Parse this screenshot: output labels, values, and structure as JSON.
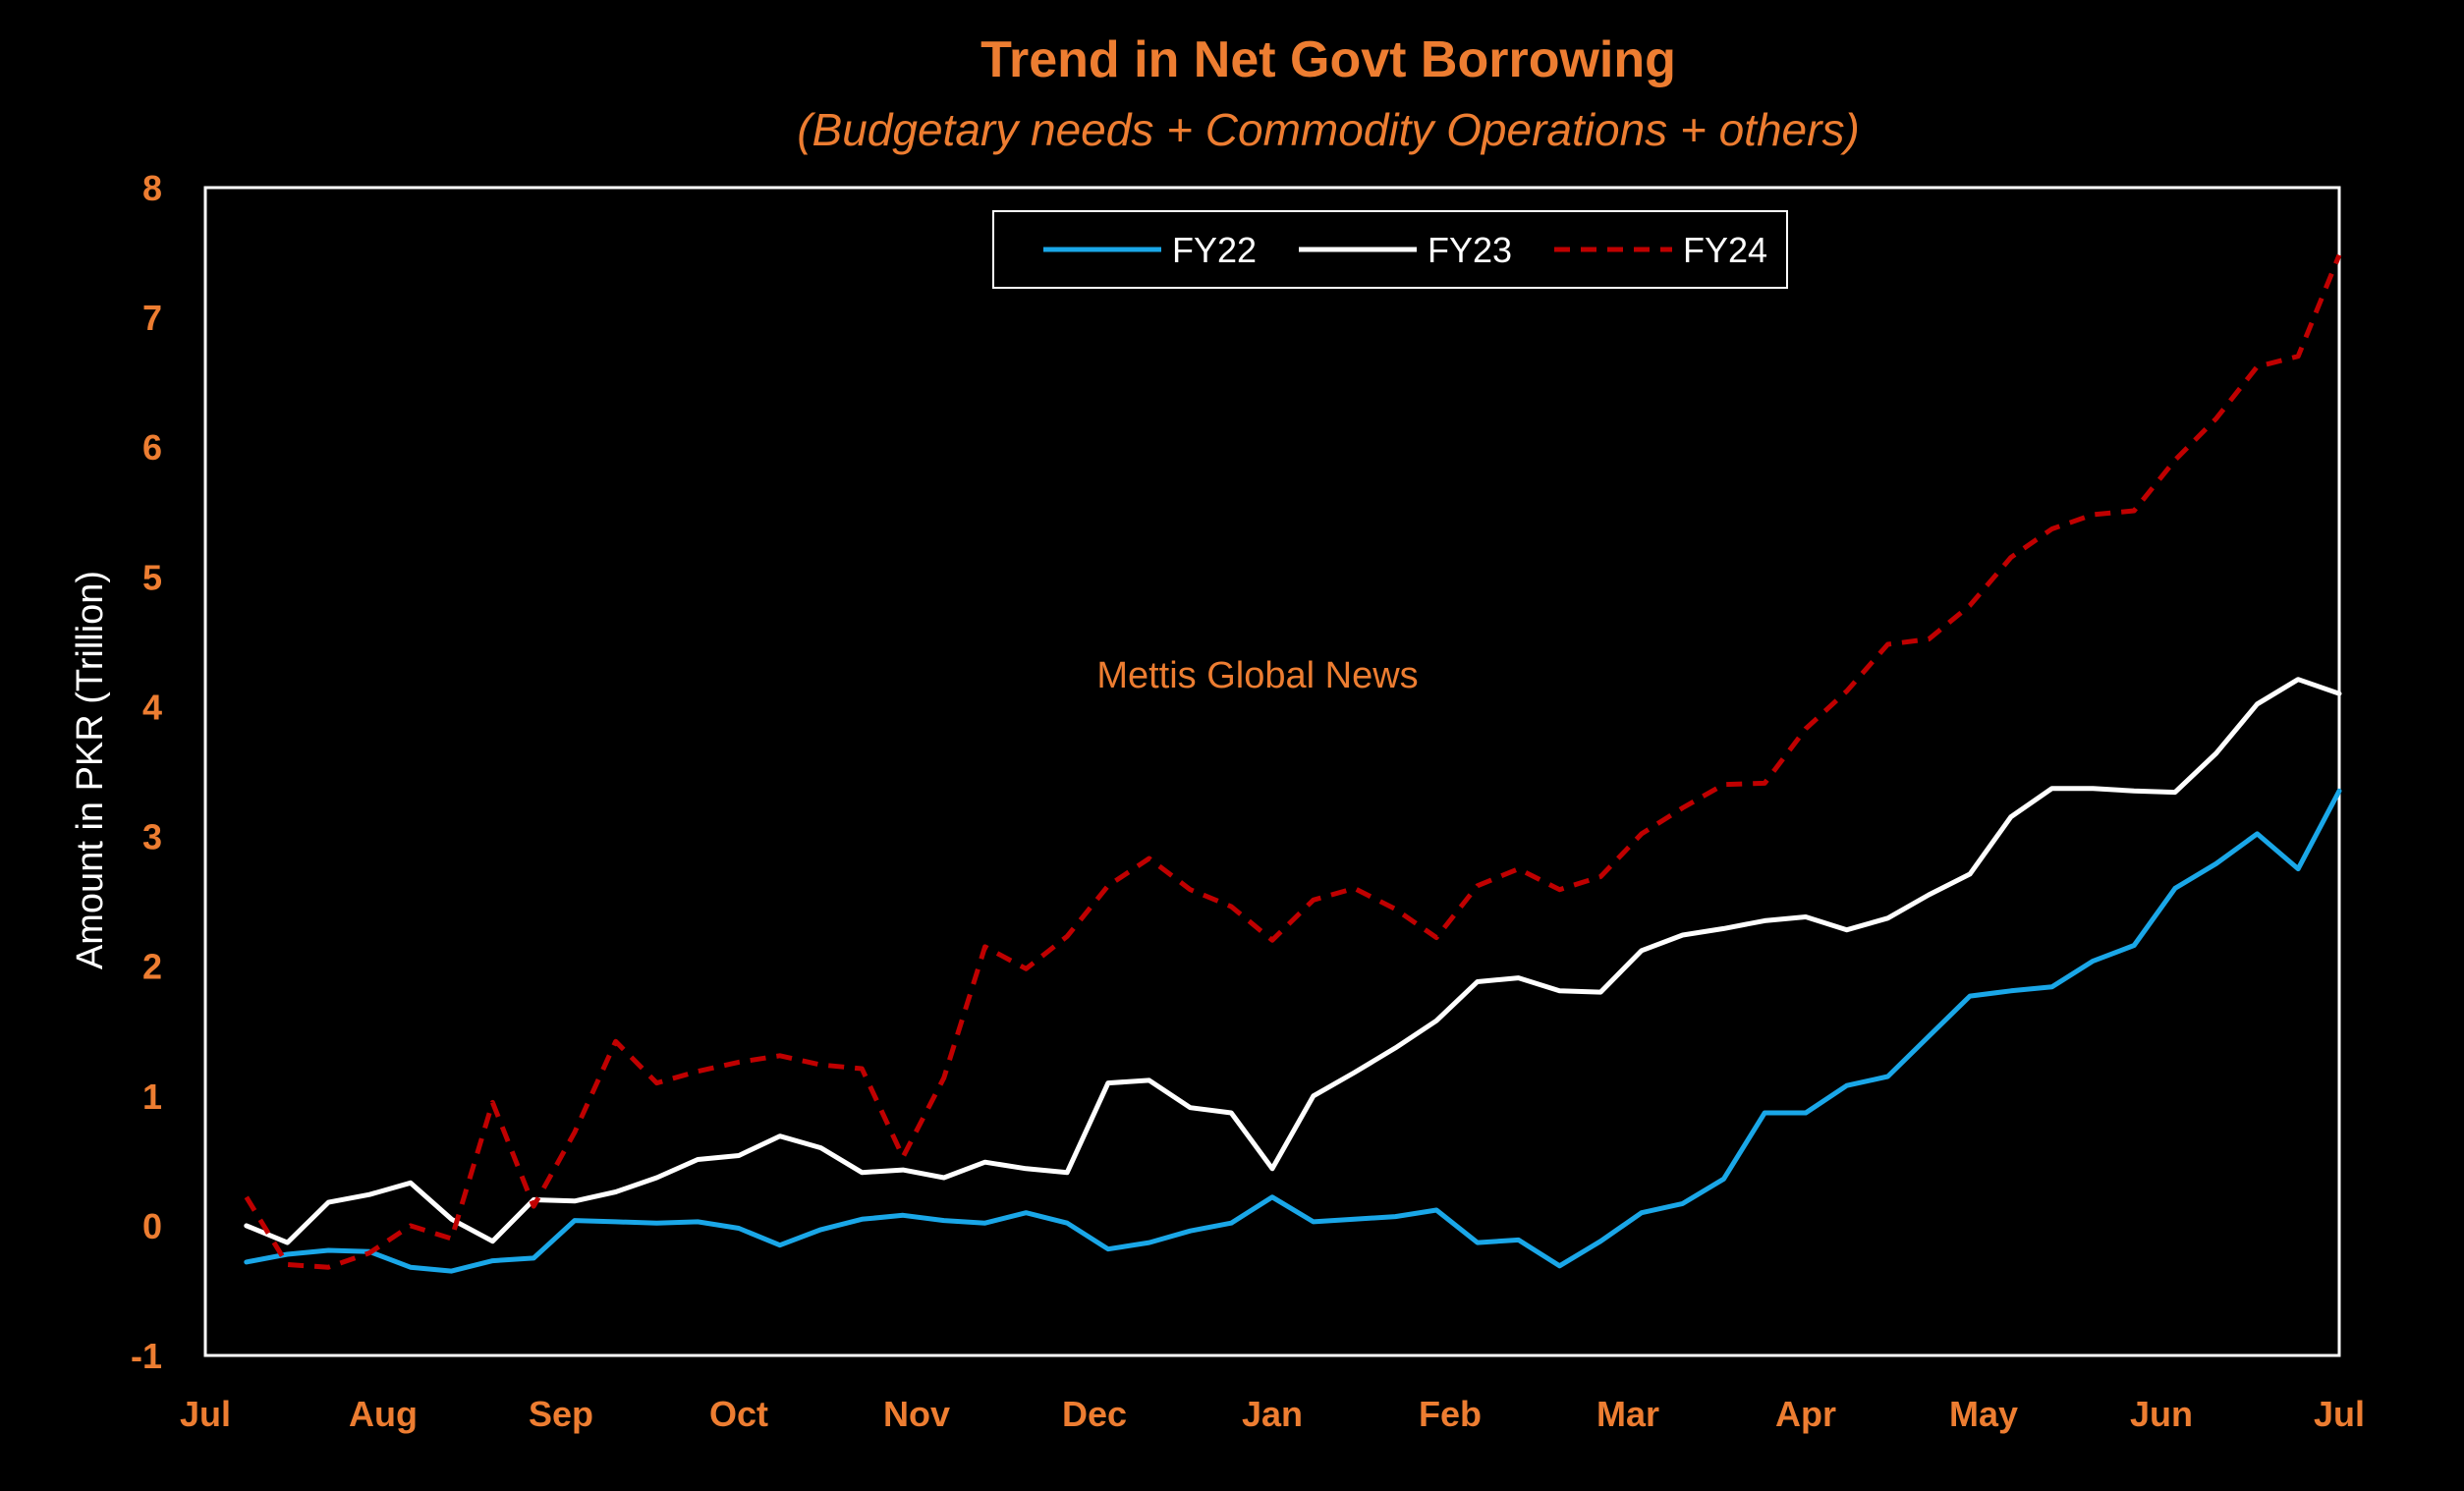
{
  "colors": {
    "background": "#000000",
    "accent_orange": "#ED7D31",
    "fy22": "#1AA7E8",
    "fy23": "#FFFFFF",
    "fy24": "#C00000"
  },
  "chart_data": {
    "type": "line",
    "title": "Trend in Net Govt Borrowing",
    "subtitle": "(Budgetary needs + Commodity Operations + others)",
    "ylabel": "Amount in PKR (Trillion)",
    "xlabel": "",
    "watermark": "Mettis Global News",
    "ylim": [
      -1,
      8
    ],
    "yticks": [
      -1,
      0,
      1,
      2,
      3,
      4,
      5,
      6,
      7,
      8
    ],
    "x_tick_labels": [
      "Jul",
      "Aug",
      "Sep",
      "Oct",
      "Nov",
      "Dec",
      "Jan",
      "Feb",
      "Mar",
      "Apr",
      "May",
      "Jun",
      "Jul"
    ],
    "x_unit": "weeks of fiscal year (0 = start of Jul, 52 = next Jul)",
    "xlim": [
      0,
      52
    ],
    "legend_position": "top-center",
    "grid": false,
    "series": [
      {
        "name": "FY22",
        "style": "solid",
        "x": [
          1,
          2,
          3,
          4,
          5,
          6,
          7,
          8,
          9,
          10,
          11,
          12,
          13,
          14,
          15,
          16,
          17,
          18,
          19,
          20,
          21,
          22,
          23,
          24,
          25,
          26,
          27,
          28,
          29,
          30,
          31,
          32,
          33,
          34,
          35,
          36,
          37,
          38,
          39,
          40,
          41,
          42,
          43,
          44,
          45,
          46,
          47,
          48,
          49,
          50,
          51,
          52
        ],
        "values": [
          -0.28,
          -0.22,
          -0.19,
          -0.2,
          -0.32,
          -0.35,
          -0.27,
          -0.25,
          0.04,
          0.03,
          0.02,
          0.03,
          -0.02,
          -0.15,
          -0.03,
          0.05,
          0.08,
          0.04,
          0.02,
          0.1,
          0.02,
          -0.18,
          -0.13,
          -0.04,
          0.02,
          0.22,
          0.03,
          0.05,
          0.07,
          0.12,
          -0.13,
          -0.11,
          -0.31,
          -0.12,
          0.1,
          0.17,
          0.36,
          0.87,
          0.87,
          1.08,
          1.15,
          1.46,
          1.77,
          1.81,
          1.84,
          2.04,
          2.16,
          2.6,
          2.79,
          3.02,
          2.75,
          3.35
        ]
      },
      {
        "name": "FY23",
        "style": "solid",
        "x": [
          1,
          2,
          3,
          4,
          5,
          6,
          7,
          8,
          9,
          10,
          11,
          12,
          13,
          14,
          15,
          16,
          17,
          18,
          19,
          20,
          21,
          22,
          23,
          24,
          25,
          26,
          27,
          28,
          29,
          30,
          31,
          32,
          33,
          34,
          35,
          36,
          37,
          38,
          39,
          40,
          41,
          42,
          43,
          44,
          45,
          46,
          47,
          48,
          49,
          50,
          51,
          52
        ],
        "values": [
          0.0,
          -0.13,
          0.18,
          0.24,
          0.33,
          0.05,
          -0.12,
          0.2,
          0.19,
          0.26,
          0.37,
          0.51,
          0.54,
          0.69,
          0.6,
          0.41,
          0.43,
          0.37,
          0.49,
          0.44,
          0.41,
          1.1,
          1.12,
          0.91,
          0.87,
          0.44,
          1.0,
          1.18,
          1.37,
          1.58,
          1.88,
          1.91,
          1.81,
          1.8,
          2.12,
          2.24,
          2.29,
          2.35,
          2.38,
          2.28,
          2.37,
          2.55,
          2.71,
          3.15,
          3.37,
          3.37,
          3.35,
          3.34,
          3.64,
          4.02,
          4.21,
          4.1
        ]
      },
      {
        "name": "FY24",
        "style": "dashed",
        "x": [
          1,
          2,
          3,
          4,
          5,
          6,
          7,
          8,
          9,
          10,
          11,
          12,
          13,
          14,
          15,
          16,
          17,
          18,
          19,
          20,
          21,
          22,
          23,
          24,
          25,
          26,
          27,
          28,
          29,
          30,
          31,
          32,
          33,
          34,
          35,
          36,
          37,
          38,
          39,
          40,
          41,
          42,
          43,
          44,
          45,
          46,
          47,
          48,
          49,
          50,
          51,
          52
        ],
        "values": [
          0.22,
          -0.3,
          -0.32,
          -0.21,
          0.0,
          -0.1,
          0.95,
          0.15,
          0.72,
          1.42,
          1.1,
          1.19,
          1.26,
          1.31,
          1.24,
          1.21,
          0.53,
          1.14,
          2.15,
          1.98,
          2.23,
          2.62,
          2.83,
          2.59,
          2.46,
          2.2,
          2.51,
          2.6,
          2.44,
          2.22,
          2.62,
          2.75,
          2.59,
          2.69,
          3.02,
          3.22,
          3.4,
          3.41,
          3.83,
          4.12,
          4.48,
          4.52,
          4.78,
          5.15,
          5.37,
          5.48,
          5.51,
          5.9,
          6.22,
          6.62,
          6.7,
          7.48
        ]
      }
    ]
  }
}
